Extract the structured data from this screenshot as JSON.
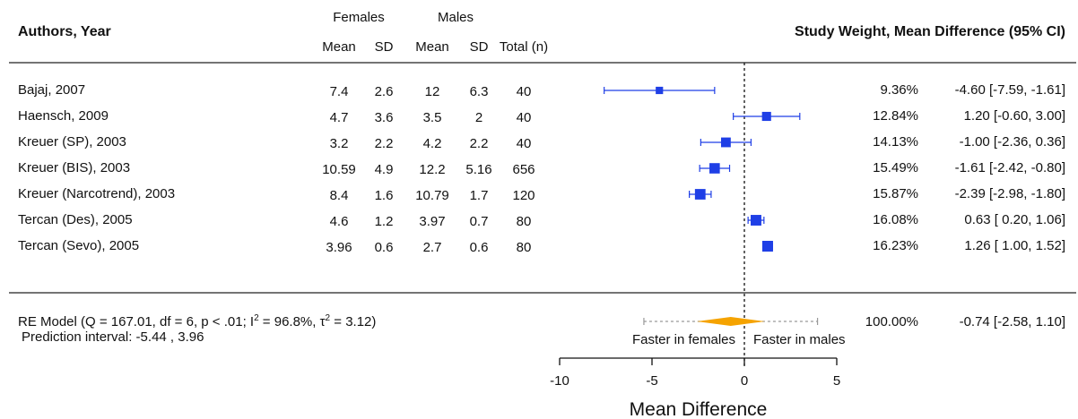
{
  "header": {
    "authors_year": "Authors, Year",
    "females": "Females",
    "males": "Males",
    "mean": "Mean",
    "sd": "SD",
    "total": "Total (n)",
    "weight_md": "Study Weight, Mean Difference (95% CI)"
  },
  "chart_data": {
    "type": "forest",
    "xlabel": "Mean Difference",
    "xlim": [
      -10,
      5
    ],
    "x_ticks": [
      "-10",
      "-5",
      "0",
      "5"
    ],
    "reference_line": 0,
    "left_annotation": "Faster in females",
    "right_annotation": "Faster in males",
    "colors": {
      "study": "#1f3fe6",
      "summary": "#f5a300",
      "prediction": "#999999"
    },
    "studies": [
      {
        "label": "Bajaj, 2007",
        "f_mean": "7.4",
        "f_sd": "2.6",
        "m_mean": "12",
        "m_sd": "6.3",
        "n": "40",
        "md": -4.6,
        "lo": -7.59,
        "hi": -1.61,
        "weight": 9.36,
        "weight_text": "9.36%",
        "ci_text": "-4.60 [-7.59, -1.61]"
      },
      {
        "label": "Haensch, 2009",
        "f_mean": "4.7",
        "f_sd": "3.6",
        "m_mean": "3.5",
        "m_sd": "2",
        "n": "40",
        "md": 1.2,
        "lo": -0.6,
        "hi": 3.0,
        "weight": 12.84,
        "weight_text": "12.84%",
        "ci_text": "1.20 [-0.60,  3.00]"
      },
      {
        "label": "Kreuer (SP), 2003",
        "f_mean": "3.2",
        "f_sd": "2.2",
        "m_mean": "4.2",
        "m_sd": "2.2",
        "n": "40",
        "md": -1.0,
        "lo": -2.36,
        "hi": 0.36,
        "weight": 14.13,
        "weight_text": "14.13%",
        "ci_text": "-1.00 [-2.36,  0.36]"
      },
      {
        "label": "Kreuer (BIS), 2003",
        "f_mean": "10.59",
        "f_sd": "4.9",
        "m_mean": "12.2",
        "m_sd": "5.16",
        "n": "656",
        "md": -1.61,
        "lo": -2.42,
        "hi": -0.8,
        "weight": 15.49,
        "weight_text": "15.49%",
        "ci_text": "-1.61 [-2.42, -0.80]"
      },
      {
        "label": "Kreuer (Narcotrend), 2003",
        "f_mean": "8.4",
        "f_sd": "1.6",
        "m_mean": "10.79",
        "m_sd": "1.7",
        "n": "120",
        "md": -2.39,
        "lo": -2.98,
        "hi": -1.8,
        "weight": 15.87,
        "weight_text": "15.87%",
        "ci_text": "-2.39 [-2.98, -1.80]"
      },
      {
        "label": "Tercan (Des), 2005",
        "f_mean": "4.6",
        "f_sd": "1.2",
        "m_mean": "3.97",
        "m_sd": "0.7",
        "n": "80",
        "md": 0.63,
        "lo": 0.2,
        "hi": 1.06,
        "weight": 16.08,
        "weight_text": "16.08%",
        "ci_text": "0.63 [ 0.20,  1.06]"
      },
      {
        "label": "Tercan (Sevo), 2005",
        "f_mean": "3.96",
        "f_sd": "0.6",
        "m_mean": "2.7",
        "m_sd": "0.6",
        "n": "80",
        "md": 1.26,
        "lo": 1.0,
        "hi": 1.52,
        "weight": 16.23,
        "weight_text": "16.23%",
        "ci_text": "1.26 [ 1.00,  1.52]"
      }
    ],
    "summary": {
      "label_pre": "RE Model (Q = 167.01, df = 6, p < .01; I",
      "sup1": "2",
      "label_mid": " = 96.8%, τ",
      "sup2": "2",
      "label_post": " = 3.12)",
      "prediction_label": "Prediction interval:  -5.44 ,  3.96",
      "md": -0.74,
      "lo": -2.58,
      "hi": 1.1,
      "pi_lo": -5.44,
      "pi_hi": 3.96,
      "weight_text": "100.00%",
      "ci_text": "-0.74 [-2.58,  1.10]"
    }
  }
}
